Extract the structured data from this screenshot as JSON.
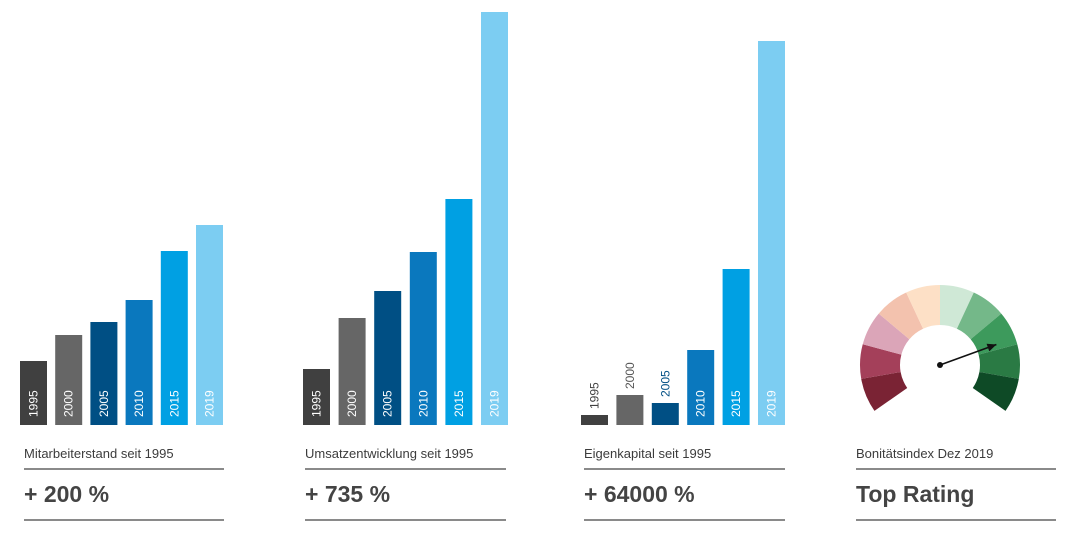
{
  "chart_data": [
    {
      "type": "bar",
      "title": "Mitarbeiterstand seit 1995",
      "result": "+ 200 %",
      "categories": [
        "1995",
        "2000",
        "2005",
        "2010",
        "2015",
        "2019"
      ],
      "values": [
        64,
        90,
        103,
        125,
        174,
        200
      ],
      "colors": [
        "#404040",
        "#666666",
        "#004f84",
        "#0a78be",
        "#00a0e3",
        "#7ccdf2"
      ],
      "label_colors": [
        "#ffffff",
        "#ffffff",
        "#ffffff",
        "#ffffff",
        "#ffffff",
        "#ffffff"
      ]
    },
    {
      "type": "bar",
      "title": "Umsatzentwicklung seit 1995",
      "result": "+ 735 %",
      "categories": [
        "1995",
        "2000",
        "2005",
        "2010",
        "2015",
        "2019"
      ],
      "values": [
        56,
        107,
        134,
        173,
        226,
        413
      ],
      "colors": [
        "#404040",
        "#666666",
        "#004f84",
        "#0a78be",
        "#00a0e3",
        "#7ccdf2"
      ],
      "label_colors": [
        "#ffffff",
        "#ffffff",
        "#ffffff",
        "#ffffff",
        "#ffffff",
        "#ffffff"
      ]
    },
    {
      "type": "bar",
      "title": "Eigenkapital seit 1995",
      "result": "+ 64000 %",
      "categories": [
        "1995",
        "2000",
        "2005",
        "2010",
        "2015",
        "2019"
      ],
      "values": [
        10,
        30,
        22,
        75,
        156,
        384
      ],
      "colors": [
        "#404040",
        "#666666",
        "#004f84",
        "#0a78be",
        "#00a0e3",
        "#7ccdf2"
      ],
      "label_colors": [
        "#404040",
        "#555555",
        "#004f84",
        "#ffffff",
        "#ffffff",
        "#ffffff"
      ]
    }
  ],
  "gauge": {
    "title": "Bonitätsindex Dez 2019",
    "result": "Top Rating",
    "segment_colors": [
      "#7a2334",
      "#a4405a",
      "#dba5b8",
      "#f3c2ae",
      "#fde0c6",
      "#cfe8d6",
      "#74b889",
      "#3d9a5c",
      "#2a7a44",
      "#0e4a26"
    ],
    "needle_color": "#111111",
    "value_fraction": 0.78
  }
}
